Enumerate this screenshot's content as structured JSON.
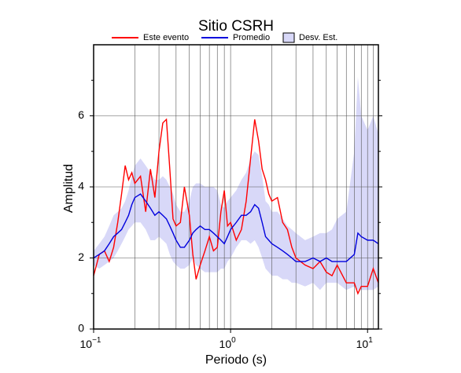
{
  "chart_data": {
    "type": "line",
    "title": "Sitio CSRH",
    "xlabel": "Periodo (s)",
    "ylabel": "Amplitud",
    "xscale": "log",
    "xlim": [
      0.1,
      12
    ],
    "ylim": [
      0,
      8
    ],
    "xticks": [
      {
        "value": 0.1,
        "label": "10",
        "exp": "−1"
      },
      {
        "value": 1,
        "label": "10",
        "exp": "0"
      },
      {
        "value": 10,
        "label": "10",
        "exp": "1"
      }
    ],
    "xgrid": [
      0.2,
      0.3,
      0.4,
      0.5,
      0.6,
      0.7,
      0.8,
      0.9,
      1,
      2,
      3,
      4,
      5,
      6,
      7,
      8,
      9,
      10,
      11
    ],
    "yticks": [
      0,
      2,
      4,
      6
    ],
    "yminor": [
      1,
      3,
      5,
      7
    ],
    "ygrid": [
      2,
      4,
      6
    ],
    "x": [
      0.1,
      0.11,
      0.12,
      0.13,
      0.14,
      0.15,
      0.16,
      0.17,
      0.18,
      0.19,
      0.2,
      0.22,
      0.24,
      0.26,
      0.28,
      0.3,
      0.32,
      0.34,
      0.36,
      0.38,
      0.4,
      0.43,
      0.46,
      0.5,
      0.53,
      0.56,
      0.6,
      0.65,
      0.7,
      0.75,
      0.8,
      0.85,
      0.9,
      0.95,
      1.0,
      1.1,
      1.2,
      1.3,
      1.4,
      1.5,
      1.6,
      1.7,
      1.8,
      1.9,
      2.0,
      2.2,
      2.4,
      2.6,
      2.8,
      3.0,
      3.5,
      4.0,
      4.5,
      5.0,
      5.5,
      6.0,
      7.0,
      8.0,
      8.5,
      9.0,
      10,
      11,
      12
    ],
    "band": {
      "name": "Desv. Est.",
      "color": "#d8d8f8",
      "lower": [
        1.8,
        1.7,
        1.8,
        1.9,
        2.0,
        2.2,
        2.4,
        2.6,
        2.8,
        2.9,
        3.0,
        3.0,
        2.8,
        2.5,
        2.5,
        2.6,
        2.5,
        2.4,
        2.1,
        1.9,
        1.8,
        1.7,
        1.7,
        1.8,
        2.0,
        1.8,
        1.7,
        1.6,
        1.6,
        1.6,
        1.6,
        1.7,
        1.7,
        1.9,
        2.0,
        2.3,
        2.5,
        2.5,
        2.4,
        2.5,
        2.3,
        2.0,
        1.7,
        1.6,
        1.5,
        1.5,
        1.4,
        1.4,
        1.3,
        1.3,
        1.2,
        1.3,
        1.1,
        1.3,
        1.3,
        1.3,
        1.1,
        1.2,
        1.1,
        1.1,
        1.1,
        1.1,
        1.2
      ],
      "upper": [
        2.2,
        2.4,
        2.6,
        2.9,
        3.2,
        3.3,
        3.4,
        3.6,
        3.9,
        4.3,
        4.6,
        4.8,
        4.6,
        4.4,
        4.2,
        4.2,
        4.3,
        4.2,
        4.0,
        3.8,
        3.5,
        3.3,
        3.3,
        3.6,
        4.0,
        4.1,
        4.1,
        4.0,
        4.0,
        4.0,
        3.9,
        3.5,
        3.4,
        3.6,
        3.7,
        3.9,
        4.2,
        4.4,
        4.8,
        5.0,
        4.9,
        4.3,
        3.6,
        3.5,
        3.3,
        3.3,
        3.1,
        2.9,
        2.8,
        2.7,
        2.5,
        2.6,
        2.7,
        2.7,
        2.8,
        3.1,
        3.3,
        5.0,
        7.1,
        6.0,
        5.6,
        6.0,
        5.5
      ]
    },
    "series": [
      {
        "name": "Este evento",
        "color": "#ff0000",
        "values": [
          1.5,
          2.1,
          2.2,
          1.9,
          2.3,
          3.0,
          3.8,
          4.6,
          4.2,
          4.4,
          4.1,
          4.3,
          3.3,
          4.5,
          3.7,
          5.0,
          5.8,
          5.9,
          4.5,
          3.1,
          2.9,
          3.0,
          4.0,
          3.2,
          2.1,
          1.4,
          1.8,
          2.2,
          2.6,
          2.2,
          2.3,
          3.3,
          3.9,
          2.9,
          3.0,
          2.5,
          2.8,
          3.6,
          4.8,
          5.9,
          5.3,
          4.5,
          4.2,
          3.8,
          3.6,
          3.7,
          3.0,
          2.8,
          2.3,
          2.0,
          1.8,
          1.7,
          1.9,
          1.6,
          1.5,
          1.8,
          1.3,
          1.3,
          1.0,
          1.2,
          1.2,
          1.7,
          1.3
        ]
      },
      {
        "name": "Promedio",
        "color": "#0000dd",
        "values": [
          2.0,
          2.1,
          2.2,
          2.4,
          2.6,
          2.7,
          2.8,
          3.0,
          3.2,
          3.5,
          3.7,
          3.8,
          3.6,
          3.4,
          3.2,
          3.3,
          3.2,
          3.1,
          2.9,
          2.7,
          2.5,
          2.3,
          2.3,
          2.5,
          2.7,
          2.8,
          2.9,
          2.8,
          2.8,
          2.7,
          2.6,
          2.5,
          2.4,
          2.6,
          2.8,
          3.0,
          3.2,
          3.2,
          3.3,
          3.5,
          3.4,
          3.0,
          2.6,
          2.5,
          2.4,
          2.3,
          2.2,
          2.1,
          2.0,
          1.9,
          1.9,
          2.0,
          1.9,
          2.0,
          1.9,
          1.9,
          1.9,
          2.1,
          2.7,
          2.6,
          2.5,
          2.5,
          2.4
        ]
      }
    ]
  }
}
